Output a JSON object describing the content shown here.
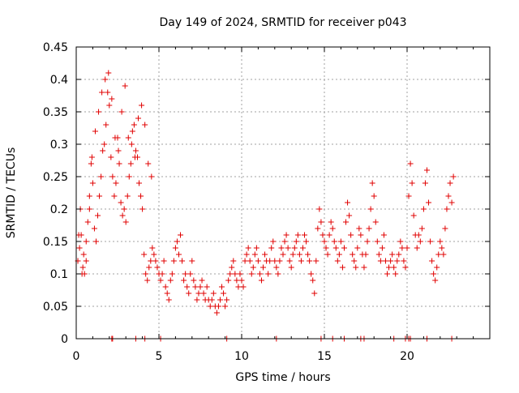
{
  "chart_data": {
    "type": "scatter",
    "title": "Day 149 of 2024, SRMTID for receiver p043",
    "xlabel": "GPS time / hours",
    "ylabel": "SRMTID / TECUs",
    "xlim": [
      0,
      25
    ],
    "ylim": [
      0,
      0.45
    ],
    "grid": true,
    "marker": "plus",
    "color": "#e00000",
    "xticks": [
      0,
      5,
      10,
      15,
      20
    ],
    "xtick_labels": [
      "0",
      "5",
      "10",
      "15",
      "20"
    ],
    "yticks": [
      0,
      0.05,
      0.1,
      0.15,
      0.2,
      0.25,
      0.3,
      0.35,
      0.4,
      0.45
    ],
    "ytick_labels": [
      "0",
      "0.05",
      "0.1",
      "0.15",
      "0.2",
      "0.25",
      "0.3",
      "0.35",
      "0.4",
      "0.45"
    ],
    "series": [
      {
        "name": "SRMTID",
        "x": [
          0.1,
          0.2,
          0.3,
          0.4,
          0.5,
          0.6,
          0.7,
          0.8,
          0.9,
          1.0,
          1.1,
          1.2,
          1.3,
          1.4,
          1.5,
          1.6,
          1.7,
          1.8,
          1.9,
          2.0,
          2.1,
          2.2,
          2.3,
          2.4,
          2.5,
          2.6,
          2.7,
          2.8,
          2.9,
          3.0,
          3.1,
          3.2,
          3.3,
          3.4,
          3.5,
          3.6,
          3.7,
          3.8,
          3.9,
          4.0,
          4.1,
          4.2,
          4.3,
          4.4,
          4.5,
          4.6,
          4.7,
          4.8,
          4.9,
          5.0,
          5.1,
          5.2,
          5.3,
          5.4,
          5.5,
          5.6,
          5.7,
          5.8,
          5.9,
          6.0,
          6.1,
          6.2,
          6.3,
          6.4,
          6.5,
          6.6,
          6.7,
          6.8,
          6.9,
          7.0,
          7.1,
          7.2,
          7.3,
          7.4,
          7.5,
          7.6,
          7.7,
          7.8,
          7.9,
          8.0,
          8.1,
          8.2,
          8.3,
          8.4,
          8.5,
          8.6,
          8.7,
          8.8,
          8.9,
          9.0,
          9.1,
          9.2,
          9.3,
          9.4,
          9.5,
          9.6,
          9.7,
          9.8,
          9.9,
          10.0,
          10.1,
          10.2,
          10.3,
          10.4,
          10.5,
          10.6,
          10.7,
          10.8,
          10.9,
          11.0,
          11.1,
          11.2,
          11.3,
          11.4,
          11.5,
          11.6,
          11.7,
          11.8,
          11.9,
          12.0,
          12.1,
          12.2,
          12.3,
          12.4,
          12.5,
          12.6,
          12.7,
          12.8,
          12.9,
          13.0,
          13.1,
          13.2,
          13.3,
          13.4,
          13.5,
          13.6,
          13.7,
          13.8,
          13.9,
          14.0,
          14.1,
          14.2,
          14.3,
          14.4,
          14.5,
          14.6,
          14.7,
          14.8,
          14.9,
          15.0,
          15.1,
          15.2,
          15.3,
          15.4,
          15.5,
          15.6,
          15.7,
          15.8,
          15.9,
          16.0,
          16.1,
          16.2,
          16.3,
          16.4,
          16.5,
          16.6,
          16.7,
          16.8,
          16.9,
          17.0,
          17.1,
          17.2,
          17.3,
          17.4,
          17.5,
          17.6,
          17.7,
          17.8,
          17.9,
          18.0,
          18.1,
          18.2,
          18.3,
          18.4,
          18.5,
          18.6,
          18.7,
          18.8,
          18.9,
          19.0,
          19.1,
          19.2,
          19.3,
          19.4,
          19.5,
          19.6,
          19.7,
          19.8,
          19.9,
          20.0,
          20.1,
          20.2,
          20.3,
          20.4,
          20.5,
          20.6,
          20.7,
          20.8,
          20.9,
          21.0,
          21.1,
          21.2,
          21.3,
          21.4,
          21.5,
          21.6,
          21.7,
          21.8,
          21.9,
          22.0,
          22.1,
          22.2,
          22.3,
          22.4,
          22.5,
          22.6,
          22.7,
          22.8,
          0.15,
          0.25,
          0.35,
          0.45,
          0.6,
          0.8,
          0.95,
          1.15,
          1.35,
          1.55,
          1.75,
          1.95,
          2.15,
          2.35,
          2.55,
          2.75,
          2.95,
          3.15,
          3.35,
          3.55,
          3.75,
          3.95,
          4.15,
          4.35,
          4.55,
          2.15,
          4.15,
          5.1,
          14.8,
          15.5,
          17.2,
          19.9,
          20.1,
          20.2,
          21.2,
          22.7,
          2.2,
          3.6,
          9.1,
          12.1,
          16.2,
          17.4,
          19.2
        ],
        "y": [
          0.12,
          0.14,
          0.16,
          0.11,
          0.1,
          0.15,
          0.18,
          0.2,
          0.27,
          0.24,
          0.17,
          0.15,
          0.19,
          0.22,
          0.25,
          0.29,
          0.3,
          0.33,
          0.38,
          0.36,
          0.28,
          0.25,
          0.22,
          0.24,
          0.31,
          0.27,
          0.21,
          0.19,
          0.2,
          0.18,
          0.22,
          0.25,
          0.27,
          0.32,
          0.33,
          0.29,
          0.28,
          0.24,
          0.22,
          0.2,
          0.13,
          0.1,
          0.09,
          0.11,
          0.12,
          0.14,
          0.13,
          0.12,
          0.11,
          0.1,
          0.09,
          0.1,
          0.12,
          0.08,
          0.07,
          0.06,
          0.09,
          0.1,
          0.12,
          0.14,
          0.15,
          0.13,
          0.16,
          0.12,
          0.09,
          0.1,
          0.08,
          0.07,
          0.1,
          0.12,
          0.09,
          0.08,
          0.06,
          0.07,
          0.08,
          0.09,
          0.07,
          0.06,
          0.08,
          0.06,
          0.05,
          0.06,
          0.07,
          0.05,
          0.04,
          0.05,
          0.06,
          0.08,
          0.07,
          0.05,
          0.06,
          0.09,
          0.1,
          0.11,
          0.12,
          0.1,
          0.09,
          0.08,
          0.1,
          0.09,
          0.08,
          0.12,
          0.13,
          0.14,
          0.12,
          0.1,
          0.11,
          0.13,
          0.14,
          0.12,
          0.1,
          0.09,
          0.11,
          0.13,
          0.12,
          0.1,
          0.12,
          0.14,
          0.15,
          0.12,
          0.11,
          0.1,
          0.12,
          0.14,
          0.13,
          0.15,
          0.16,
          0.14,
          0.12,
          0.11,
          0.13,
          0.14,
          0.15,
          0.16,
          0.13,
          0.12,
          0.14,
          0.16,
          0.15,
          0.13,
          0.12,
          0.1,
          0.09,
          0.07,
          0.12,
          0.17,
          0.2,
          0.18,
          0.16,
          0.15,
          0.14,
          0.13,
          0.16,
          0.18,
          0.17,
          0.15,
          0.14,
          0.12,
          0.13,
          0.15,
          0.11,
          0.14,
          0.18,
          0.21,
          0.19,
          0.16,
          0.13,
          0.12,
          0.11,
          0.14,
          0.17,
          0.16,
          0.13,
          0.11,
          0.13,
          0.15,
          0.17,
          0.2,
          0.24,
          0.22,
          0.18,
          0.15,
          0.13,
          0.12,
          0.14,
          0.16,
          0.12,
          0.1,
          0.11,
          0.12,
          0.13,
          0.11,
          0.1,
          0.12,
          0.13,
          0.15,
          0.14,
          0.12,
          0.11,
          0.14,
          0.22,
          0.27,
          0.24,
          0.19,
          0.16,
          0.14,
          0.16,
          0.15,
          0.17,
          0.2,
          0.24,
          0.26,
          0.21,
          0.15,
          0.12,
          0.1,
          0.09,
          0.11,
          0.13,
          0.15,
          0.14,
          0.13,
          0.17,
          0.2,
          0.22,
          0.24,
          0.21,
          0.25,
          0.16,
          0.2,
          0.1,
          0.13,
          0.12,
          0.22,
          0.28,
          0.32,
          0.35,
          0.38,
          0.4,
          0.41,
          0.37,
          0.31,
          0.29,
          0.35,
          0.39,
          0.31,
          0.3,
          0.28,
          0.34,
          0.36,
          0.33,
          0.27,
          0.25,
          0,
          0,
          0,
          0,
          0,
          0,
          0,
          0,
          0,
          0,
          0,
          0,
          0,
          0,
          0,
          0,
          0,
          0
        ]
      }
    ]
  }
}
